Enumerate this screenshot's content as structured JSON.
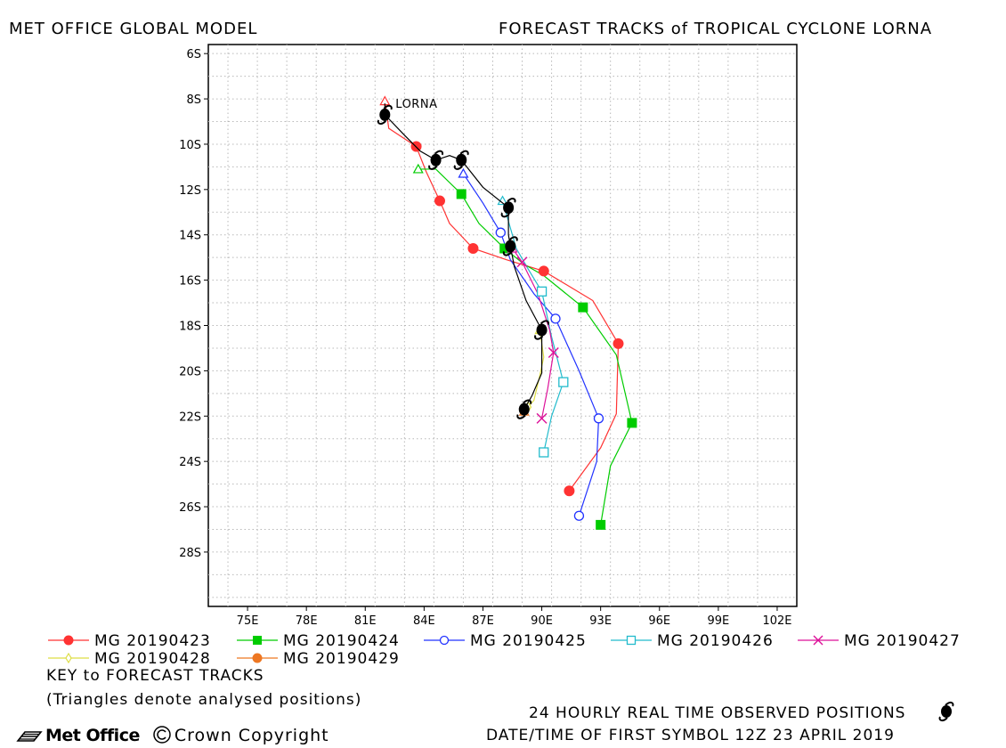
{
  "header": {
    "left": "MET OFFICE GLOBAL MODEL",
    "right": "FORECAST TRACKS of TROPICAL CYCLONE LORNA"
  },
  "footer": {
    "key_title": "KEY to FORECAST TRACKS",
    "triangles_note": "(Triangles denote analysed positions)",
    "observed_label": "24 HOURLY REAL TIME OBSERVED POSITIONS",
    "first_symbol": "DATE/TIME OF FIRST SYMBOL 12Z 23 APRIL 2019",
    "brand": "Met Office",
    "copyright": "Crown Copyright"
  },
  "colors": {
    "MG 20190423": "#ff3333",
    "MG 20190424": "#00cc00",
    "MG 20190425": "#2233ff",
    "MG 20190426": "#22bbcc",
    "MG 20190427": "#dd1199",
    "MG 20190428": "#dddd44",
    "MG 20190429": "#ee7722",
    "observed": "#000000"
  },
  "chart_data": {
    "type": "line",
    "title": "FORECAST TRACKS of TROPICAL CYCLONE LORNA",
    "xlim": [
      73,
      103
    ],
    "ylim": [
      -30.4,
      -5.6
    ],
    "x_ticks": [
      75,
      78,
      81,
      84,
      87,
      90,
      93,
      96,
      99,
      102
    ],
    "x_tick_labels": [
      "75E",
      "78E",
      "81E",
      "84E",
      "87E",
      "90E",
      "93E",
      "96E",
      "99E",
      "102E"
    ],
    "y_ticks": [
      -6,
      -8,
      -10,
      -12,
      -14,
      -16,
      -18,
      -20,
      -22,
      -24,
      -26,
      -28
    ],
    "y_tick_labels": [
      "6S",
      "8S",
      "10S",
      "12S",
      "14S",
      "16S",
      "18S",
      "20S",
      "22S",
      "24S",
      "26S",
      "28S"
    ],
    "grid": true,
    "storm_label": "LORNA",
    "observed": {
      "name": "observed",
      "points": [
        [
          82.0,
          -8.7
        ],
        [
          84.6,
          -10.7
        ],
        [
          85.9,
          -10.7
        ],
        [
          88.3,
          -12.8
        ],
        [
          88.4,
          -14.5
        ],
        [
          90.0,
          -18.2
        ],
        [
          89.1,
          -21.7
        ]
      ],
      "track": [
        [
          82.0,
          -8.2
        ],
        [
          82.0,
          -8.7
        ],
        [
          83.0,
          -9.6
        ],
        [
          83.8,
          -10.3
        ],
        [
          84.6,
          -10.7
        ],
        [
          85.3,
          -10.5
        ],
        [
          85.9,
          -10.7
        ],
        [
          87.0,
          -11.9
        ],
        [
          88.3,
          -12.8
        ],
        [
          88.3,
          -14.0
        ],
        [
          88.4,
          -14.5
        ],
        [
          88.6,
          -15.4
        ],
        [
          89.2,
          -16.9
        ],
        [
          90.0,
          -18.2
        ],
        [
          90.0,
          -20.1
        ],
        [
          89.5,
          -21.1
        ],
        [
          89.1,
          -21.7
        ]
      ]
    },
    "series": [
      {
        "name": "MG 20190423",
        "marker": "filled-circle",
        "analysed": [
          82.0,
          -8.1
        ],
        "track": [
          [
            82.0,
            -8.1
          ],
          [
            82.2,
            -9.3
          ],
          [
            83.6,
            -10.1
          ],
          [
            84.1,
            -11.2
          ],
          [
            84.8,
            -12.5
          ],
          [
            85.3,
            -13.5
          ],
          [
            86.5,
            -14.6
          ],
          [
            88.2,
            -15.1
          ],
          [
            90.1,
            -15.6
          ],
          [
            92.6,
            -16.9
          ],
          [
            93.9,
            -18.8
          ],
          [
            93.8,
            -21.9
          ],
          [
            93.0,
            -23.4
          ],
          [
            91.4,
            -25.3
          ]
        ],
        "markers": [
          [
            83.6,
            -10.1
          ],
          [
            84.8,
            -12.5
          ],
          [
            86.5,
            -14.6
          ],
          [
            90.1,
            -15.6
          ],
          [
            93.9,
            -18.8
          ],
          [
            91.4,
            -25.3
          ]
        ]
      },
      {
        "name": "MG 20190424",
        "marker": "filled-square",
        "analysed": [
          83.7,
          -11.1
        ],
        "track": [
          [
            83.7,
            -11.1
          ],
          [
            84.6,
            -11.1
          ],
          [
            85.9,
            -12.2
          ],
          [
            86.8,
            -13.5
          ],
          [
            88.1,
            -14.6
          ],
          [
            89.1,
            -15.3
          ],
          [
            90.1,
            -15.8
          ],
          [
            92.1,
            -17.2
          ],
          [
            93.8,
            -19.3
          ],
          [
            94.6,
            -22.3
          ],
          [
            93.5,
            -24.2
          ],
          [
            93.0,
            -26.8
          ]
        ],
        "markers": [
          [
            85.9,
            -12.2
          ],
          [
            88.1,
            -14.6
          ],
          [
            92.1,
            -17.2
          ],
          [
            94.6,
            -22.3
          ],
          [
            93.0,
            -26.8
          ]
        ]
      },
      {
        "name": "MG 20190425",
        "marker": "open-circle",
        "analysed": [
          86.0,
          -11.3
        ],
        "track": [
          [
            86.0,
            -11.3
          ],
          [
            87.0,
            -12.6
          ],
          [
            87.9,
            -13.9
          ],
          [
            88.4,
            -15.1
          ],
          [
            89.6,
            -16.6
          ],
          [
            90.7,
            -17.7
          ],
          [
            91.9,
            -20.0
          ],
          [
            92.9,
            -22.1
          ],
          [
            92.8,
            -24.0
          ],
          [
            91.9,
            -26.4
          ]
        ],
        "markers": [
          [
            87.9,
            -13.9
          ],
          [
            90.7,
            -17.7
          ],
          [
            92.9,
            -22.1
          ],
          [
            91.9,
            -26.4
          ]
        ]
      },
      {
        "name": "MG 20190426",
        "marker": "open-square",
        "analysed": [
          88.0,
          -12.5
        ],
        "track": [
          [
            88.0,
            -12.5
          ],
          [
            88.7,
            -14.6
          ],
          [
            89.3,
            -15.5
          ],
          [
            90.0,
            -16.5
          ],
          [
            90.5,
            -18.5
          ],
          [
            91.1,
            -20.5
          ],
          [
            90.5,
            -22.0
          ],
          [
            90.1,
            -23.6
          ]
        ],
        "markers": [
          [
            90.0,
            -16.5
          ],
          [
            91.1,
            -20.5
          ],
          [
            90.1,
            -23.6
          ]
        ]
      },
      {
        "name": "MG 20190427",
        "marker": "cross",
        "analysed": [
          88.5,
          -14.6
        ],
        "track": [
          [
            88.5,
            -14.6
          ],
          [
            89.0,
            -15.2
          ],
          [
            89.8,
            -16.6
          ],
          [
            90.4,
            -18.2
          ],
          [
            90.6,
            -19.2
          ],
          [
            90.3,
            -20.8
          ],
          [
            90.0,
            -22.1
          ]
        ],
        "markers": [
          [
            89.0,
            -15.2
          ],
          [
            90.6,
            -19.2
          ],
          [
            90.0,
            -22.1
          ]
        ]
      },
      {
        "name": "MG 20190428",
        "marker": "open-diamond",
        "analysed": [
          89.9,
          -18.2
        ],
        "track": [
          [
            89.9,
            -18.2
          ],
          [
            90.1,
            -19.4
          ],
          [
            89.9,
            -20.2
          ],
          [
            89.6,
            -21.3
          ],
          [
            89.3,
            -21.6
          ]
        ],
        "markers": [
          [
            89.3,
            -21.6
          ]
        ]
      },
      {
        "name": "MG 20190429",
        "marker": "filled-circle",
        "analysed": [
          89.1,
          -21.8
        ],
        "track": [
          [
            89.1,
            -21.8
          ]
        ],
        "markers": []
      }
    ],
    "legend_placement": "bottom"
  }
}
